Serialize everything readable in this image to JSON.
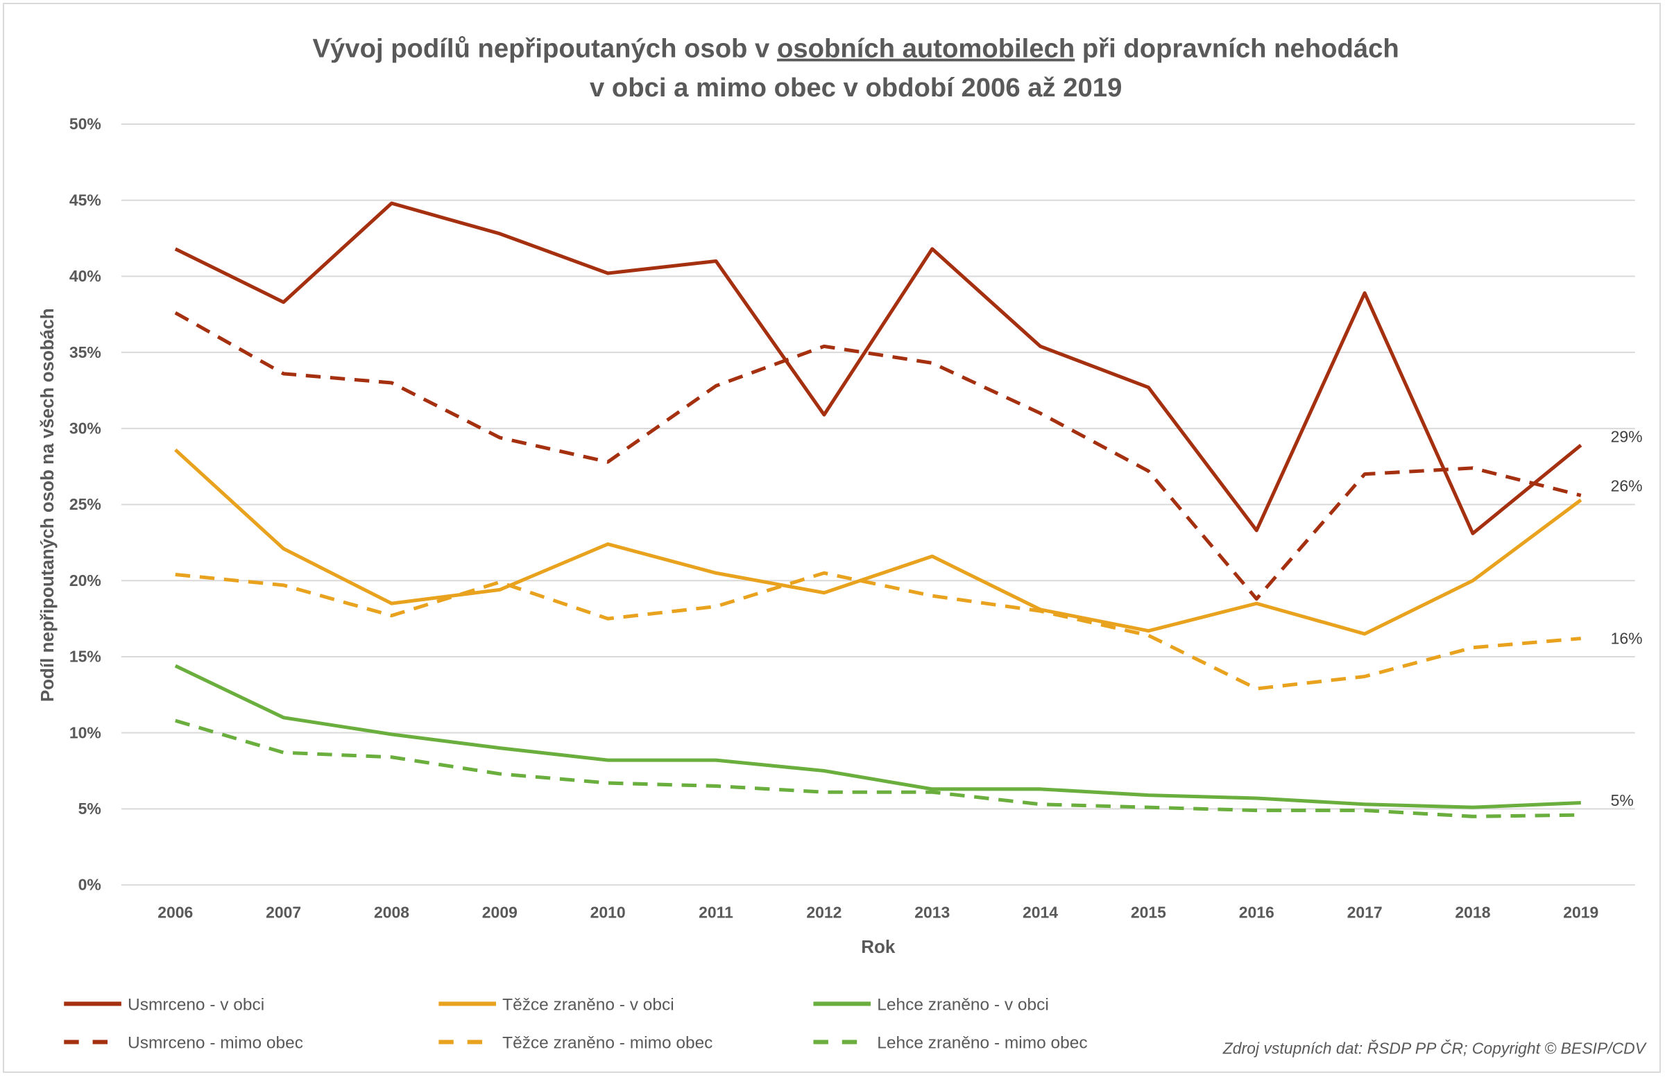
{
  "chart_data": {
    "type": "line",
    "title_line1_pre": "Vývoj podílů nepřipoutaných osob v ",
    "title_line1_underlined": "osobních automobilech",
    "title_line1_post": " při dopravních nehodách",
    "title_line2": "v obci a mimo obec v období 2006 až 2019",
    "xlabel": "Rok",
    "ylabel": "Podíl nepřipoutaných osob na všech osobách",
    "ylim": [
      0,
      50
    ],
    "yticks": [
      "0%",
      "5%",
      "10%",
      "15%",
      "20%",
      "25%",
      "30%",
      "35%",
      "40%",
      "45%",
      "50%"
    ],
    "grid": true,
    "legend_position": "bottom",
    "categories": [
      "2006",
      "2007",
      "2008",
      "2009",
      "2010",
      "2011",
      "2012",
      "2013",
      "2014",
      "2015",
      "2016",
      "2017",
      "2018",
      "2019"
    ],
    "series": [
      {
        "name": "Usmrceno - v obci",
        "color": "#A5300F",
        "dash": false,
        "values": [
          41.8,
          38.3,
          44.8,
          42.8,
          40.2,
          41.0,
          30.9,
          41.8,
          35.4,
          32.7,
          23.3,
          38.9,
          23.1,
          28.9
        ],
        "end_label": "29%"
      },
      {
        "name": "Těžce zraněno - v obci",
        "color": "#E8A21E",
        "dash": false,
        "values": [
          28.6,
          22.1,
          18.5,
          19.4,
          22.4,
          20.5,
          19.2,
          21.6,
          18.1,
          16.7,
          18.5,
          16.5,
          20.0,
          25.3
        ],
        "end_label": "26%"
      },
      {
        "name": "Lehce zraněno - v obci",
        "color": "#6AAE3E",
        "dash": false,
        "values": [
          14.4,
          11.0,
          9.9,
          9.0,
          8.2,
          8.2,
          7.5,
          6.3,
          6.3,
          5.9,
          5.7,
          5.3,
          5.1,
          5.4
        ],
        "end_label": "5%"
      },
      {
        "name": "Usmrceno - mimo obec",
        "color": "#A5300F",
        "dash": true,
        "values": [
          37.6,
          33.6,
          33.0,
          29.4,
          27.8,
          32.8,
          35.4,
          34.3,
          31.0,
          27.2,
          18.8,
          27.0,
          27.4,
          25.6
        ]
      },
      {
        "name": "Těžce zraněno - mimo obec",
        "color": "#E8A21E",
        "dash": true,
        "values": [
          20.4,
          19.7,
          17.7,
          19.9,
          17.5,
          18.3,
          20.5,
          19.0,
          18.0,
          16.4,
          12.9,
          13.7,
          15.6,
          16.2
        ],
        "end_label": "16%"
      },
      {
        "name": "Lehce zraněno - mimo obec",
        "color": "#6AAE3E",
        "dash": true,
        "values": [
          10.8,
          8.7,
          8.4,
          7.3,
          6.7,
          6.5,
          6.1,
          6.1,
          5.3,
          5.1,
          4.9,
          4.9,
          4.5,
          4.6
        ]
      }
    ],
    "source": "Zdroj vstupních dat: ŘSDP PP ČR; Copyright © BESIP/CDV"
  }
}
